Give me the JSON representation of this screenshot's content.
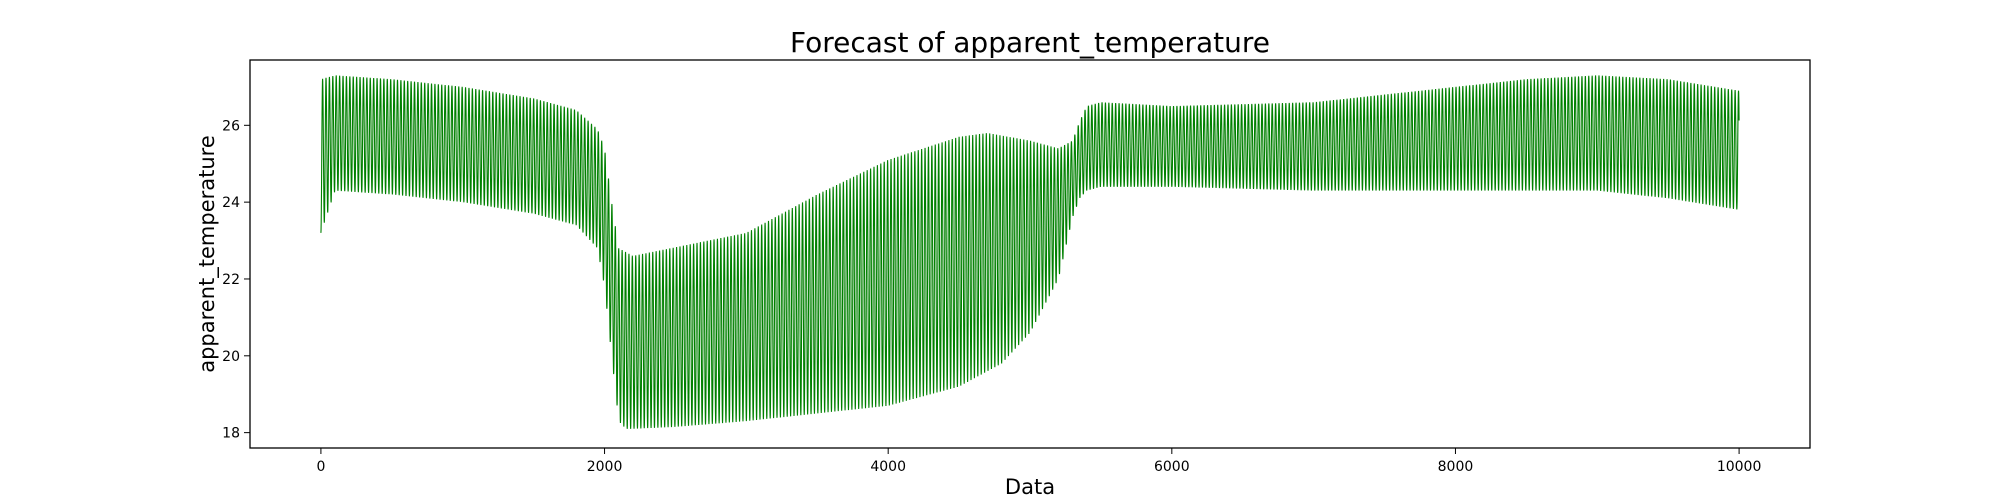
{
  "chart_data": {
    "type": "line",
    "title": "Forecast of apparent_temperature",
    "xlabel": "Data",
    "ylabel": "apparent_temperature",
    "xlim": [
      -500,
      10500
    ],
    "ylim": [
      17.6,
      27.7
    ],
    "xticks": [
      0,
      2000,
      4000,
      6000,
      8000,
      10000
    ],
    "yticks": [
      18,
      20,
      22,
      24,
      26
    ],
    "grid": false,
    "color": "#008000",
    "series": [
      {
        "cycle_length": 24,
        "x_range": [
          0,
          10000
        ],
        "upper_envelope": {
          "x": [
            0,
            100,
            500,
            1000,
            1500,
            1800,
            1950,
            2000,
            2050,
            2100,
            2200,
            3000,
            3500,
            4000,
            4500,
            4700,
            5000,
            5200,
            5300,
            5350,
            5400,
            5500,
            6000,
            7000,
            8000,
            8500,
            9000,
            9500,
            10000
          ],
          "y": [
            27.2,
            27.3,
            27.2,
            27.0,
            26.7,
            26.4,
            25.9,
            25.4,
            24.0,
            22.8,
            22.6,
            23.2,
            24.2,
            25.1,
            25.7,
            25.8,
            25.6,
            25.4,
            25.6,
            26.1,
            26.5,
            26.6,
            26.5,
            26.6,
            27.0,
            27.2,
            27.3,
            27.2,
            26.9
          ]
        },
        "lower_envelope": {
          "x": [
            0,
            100,
            500,
            1000,
            1500,
            1800,
            1950,
            2000,
            2050,
            2100,
            2150,
            2200,
            2500,
            3000,
            3500,
            4000,
            4500,
            4800,
            5000,
            5200,
            5300,
            5350,
            5400,
            5500,
            6000,
            7000,
            8000,
            9000,
            9500,
            10000
          ],
          "y": [
            23.2,
            24.3,
            24.2,
            24.0,
            23.7,
            23.4,
            22.8,
            21.8,
            20.0,
            18.3,
            18.1,
            18.1,
            18.15,
            18.3,
            18.5,
            18.7,
            19.2,
            19.8,
            20.6,
            22.0,
            23.6,
            24.1,
            24.3,
            24.4,
            24.4,
            24.3,
            24.3,
            24.3,
            24.1,
            23.8
          ]
        }
      }
    ]
  }
}
